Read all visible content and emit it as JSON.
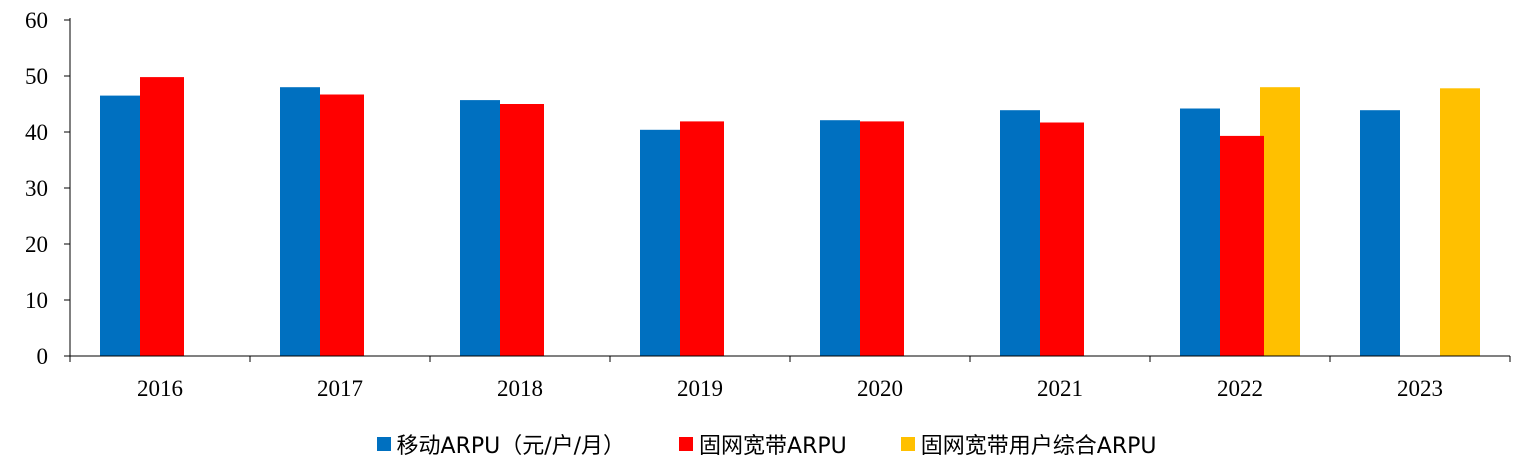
{
  "chart_data": {
    "type": "bar",
    "categories": [
      "2016",
      "2017",
      "2018",
      "2019",
      "2020",
      "2021",
      "2022",
      "2023"
    ],
    "series": [
      {
        "name": "移动ARPU（元/户/月）",
        "color": "#0070C0",
        "values": [
          46.5,
          48.0,
          45.7,
          40.4,
          42.1,
          43.9,
          44.2,
          43.9
        ]
      },
      {
        "name": "固网宽带ARPU",
        "color": "#FF0000",
        "values": [
          49.8,
          46.7,
          45.0,
          41.9,
          41.9,
          41.7,
          39.3,
          null
        ]
      },
      {
        "name": "固网宽带用户综合ARPU",
        "color": "#FFC000",
        "values": [
          null,
          null,
          null,
          null,
          null,
          null,
          48.0,
          47.8
        ]
      }
    ],
    "yticks": [
      "0",
      "10",
      "20",
      "30",
      "40",
      "50",
      "60"
    ],
    "ylim": [
      0,
      60
    ],
    "title": "",
    "xlabel": "",
    "ylabel": "",
    "legend": "bottom",
    "grid": false
  }
}
